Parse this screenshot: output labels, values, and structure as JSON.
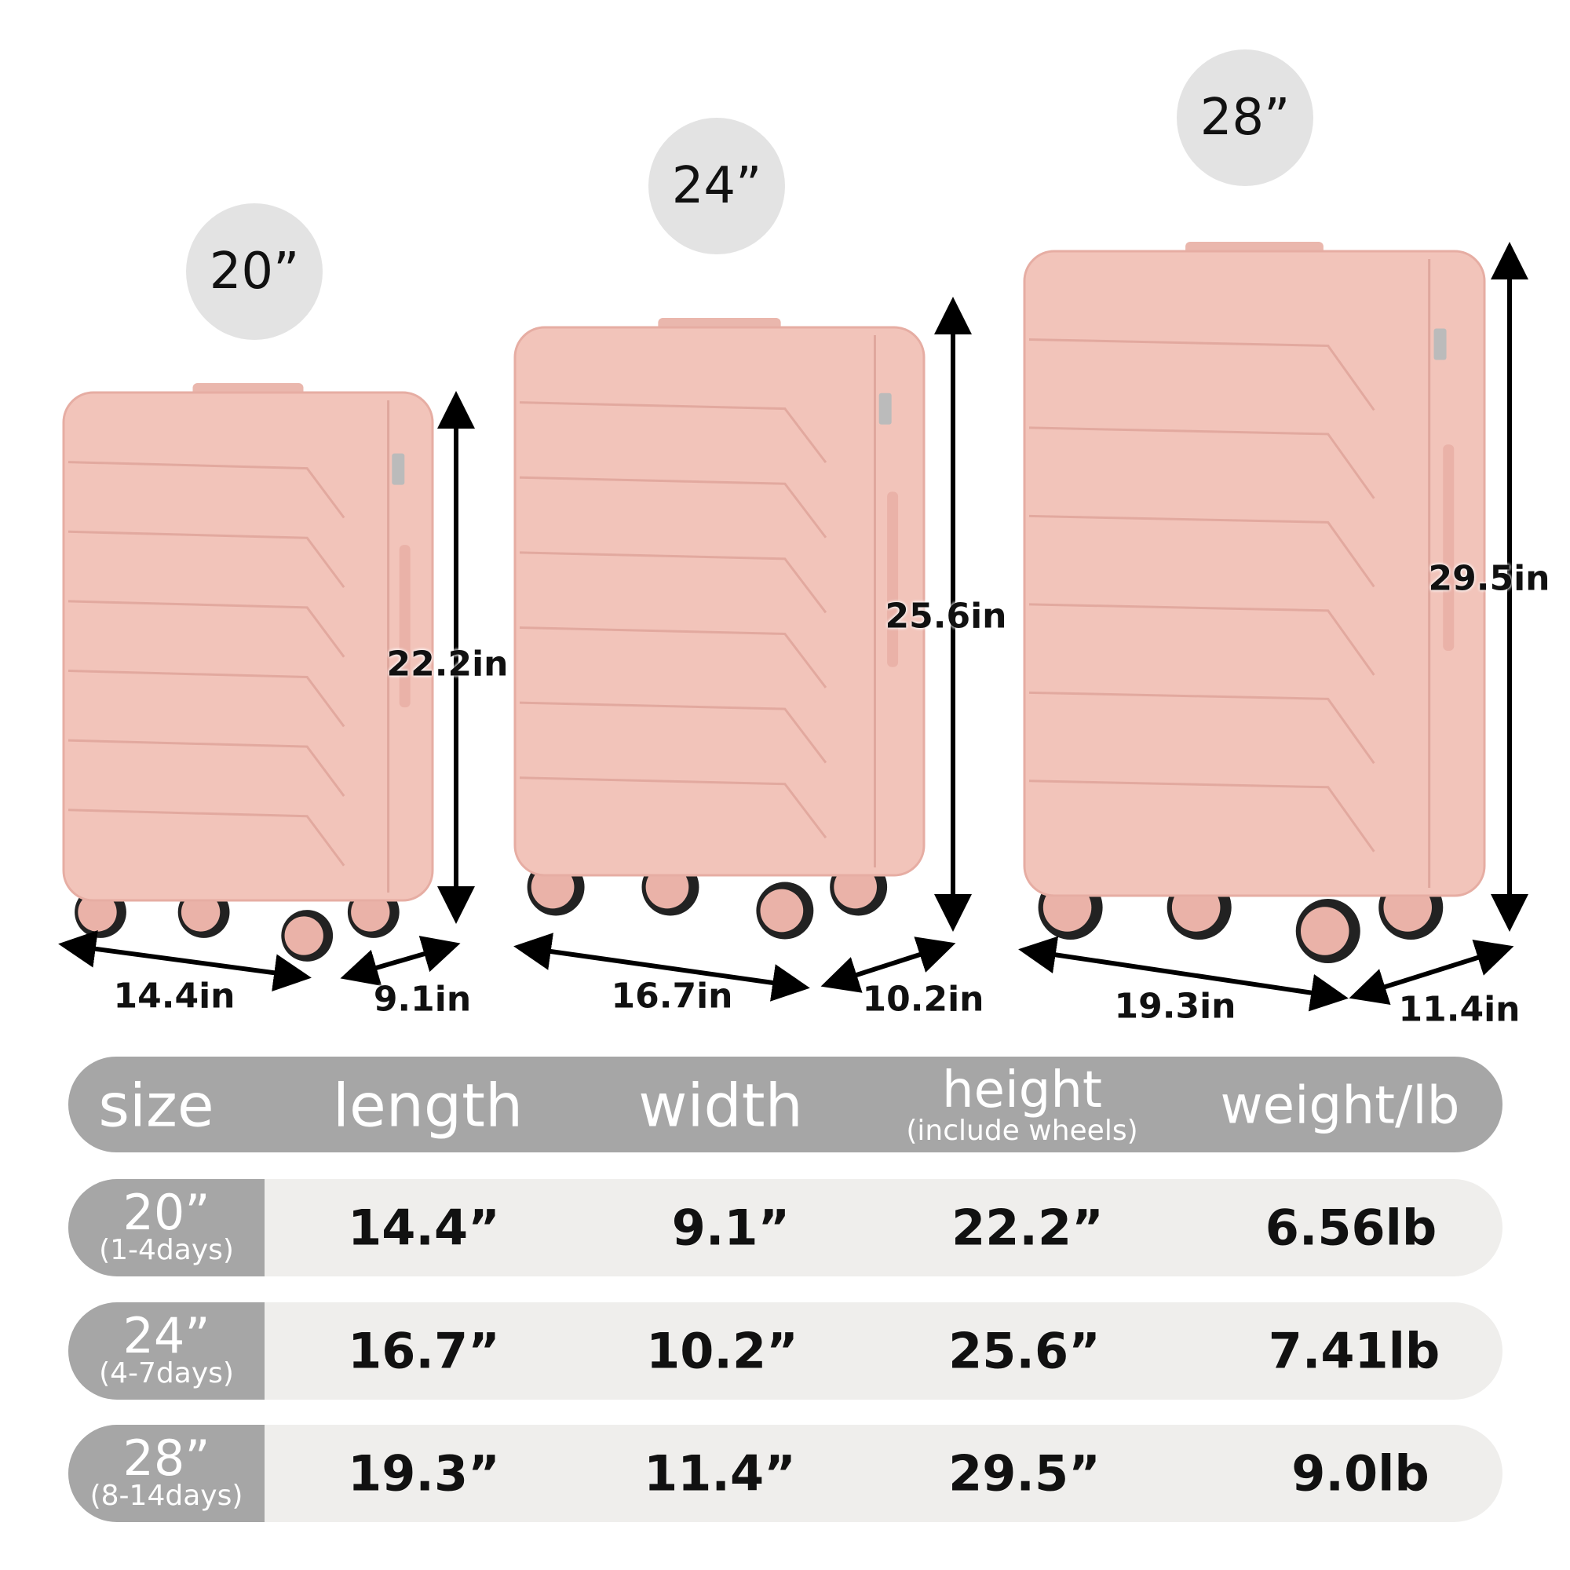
{
  "colors": {
    "suitcase": "#f2c4ba",
    "badge": "#e3e3e3",
    "header": "#a6a6a6",
    "row": "#efeeec"
  },
  "suitcases": [
    {
      "size": "20”",
      "height": "22.2in",
      "length": "14.4in",
      "width": "9.1in"
    },
    {
      "size": "24”",
      "height": "25.6in",
      "length": "16.7in",
      "width": "10.2in"
    },
    {
      "size": "28”",
      "height": "29.5in",
      "length": "19.3in",
      "width": "11.4in"
    }
  ],
  "table": {
    "headers": {
      "size": "size",
      "length": "length",
      "width": "width",
      "height": "height",
      "height_note": "(include wheels)",
      "weight": "weight/lb"
    },
    "rows": [
      {
        "size": "20”",
        "days": "(1-4days)",
        "length": "14.4”",
        "width": "9.1”",
        "height": "22.2”",
        "weight": "6.56lb"
      },
      {
        "size": "24”",
        "days": "(4-7days)",
        "length": "16.7”",
        "width": "10.2”",
        "height": "25.6”",
        "weight": "7.41lb"
      },
      {
        "size": "28”",
        "days": "(8-14days)",
        "length": "19.3”",
        "width": "11.4”",
        "height": "29.5”",
        "weight": "9.0lb"
      }
    ]
  }
}
